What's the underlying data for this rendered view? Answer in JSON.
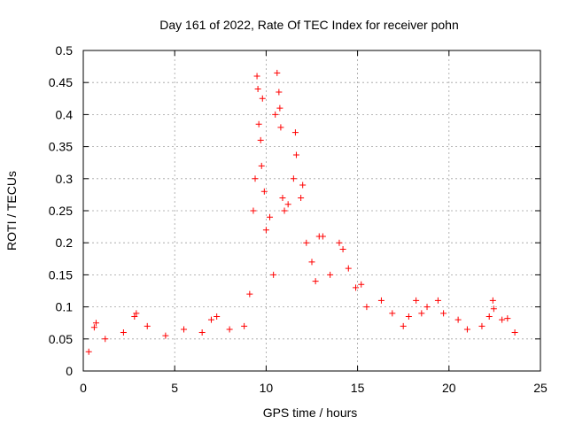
{
  "chart_data": {
    "type": "scatter",
    "title": "Day 161 of 2022, Rate Of TEC Index for receiver pohn",
    "xlabel": "GPS time / hours",
    "ylabel": "ROTI / TECUs",
    "xlim": [
      0,
      25
    ],
    "ylim": [
      0,
      0.5
    ],
    "xticks": [
      0,
      5,
      10,
      15,
      20,
      25
    ],
    "xtick_labels": [
      "0",
      "5",
      "10",
      "15",
      "20",
      "25"
    ],
    "yticks": [
      0,
      0.05,
      0.1,
      0.15,
      0.2,
      0.25,
      0.3,
      0.35,
      0.4,
      0.45,
      0.5
    ],
    "ytick_labels": [
      "0",
      "0.05",
      "0.1",
      "0.15",
      "0.2",
      "0.25",
      "0.3",
      "0.35",
      "0.4",
      "0.45",
      "0.5"
    ],
    "grid": true,
    "marker": "+",
    "color": "#ff0000",
    "data_x_range_hours": [
      0,
      24
    ],
    "series": [
      {
        "name": "ROTI",
        "points": [
          [
            0.3,
            0.03
          ],
          [
            0.6,
            0.068
          ],
          [
            0.7,
            0.075
          ],
          [
            1.2,
            0.05
          ],
          [
            2.2,
            0.06
          ],
          [
            2.8,
            0.085
          ],
          [
            2.9,
            0.09
          ],
          [
            3.5,
            0.07
          ],
          [
            4.5,
            0.055
          ],
          [
            5.5,
            0.065
          ],
          [
            6.5,
            0.06
          ],
          [
            7.0,
            0.08
          ],
          [
            7.3,
            0.085
          ],
          [
            8.0,
            0.065
          ],
          [
            8.8,
            0.07
          ],
          [
            9.1,
            0.12
          ],
          [
            9.3,
            0.25
          ],
          [
            9.4,
            0.3
          ],
          [
            9.5,
            0.46
          ],
          [
            9.55,
            0.44
          ],
          [
            9.6,
            0.385
          ],
          [
            9.7,
            0.36
          ],
          [
            9.75,
            0.32
          ],
          [
            9.8,
            0.425
          ],
          [
            9.9,
            0.28
          ],
          [
            10.0,
            0.22
          ],
          [
            10.2,
            0.24
          ],
          [
            10.4,
            0.15
          ],
          [
            10.5,
            0.4
          ],
          [
            10.6,
            0.465
          ],
          [
            10.7,
            0.435
          ],
          [
            10.75,
            0.41
          ],
          [
            10.8,
            0.38
          ],
          [
            10.9,
            0.27
          ],
          [
            11.0,
            0.25
          ],
          [
            11.2,
            0.26
          ],
          [
            11.5,
            0.3
          ],
          [
            11.6,
            0.372
          ],
          [
            11.65,
            0.337
          ],
          [
            11.9,
            0.27
          ],
          [
            12.0,
            0.29
          ],
          [
            12.2,
            0.2
          ],
          [
            12.5,
            0.17
          ],
          [
            12.7,
            0.14
          ],
          [
            12.9,
            0.21
          ],
          [
            13.1,
            0.21
          ],
          [
            13.5,
            0.15
          ],
          [
            14.0,
            0.2
          ],
          [
            14.2,
            0.19
          ],
          [
            14.5,
            0.16
          ],
          [
            14.9,
            0.13
          ],
          [
            15.2,
            0.135
          ],
          [
            15.5,
            0.1
          ],
          [
            16.3,
            0.11
          ],
          [
            16.9,
            0.09
          ],
          [
            17.5,
            0.07
          ],
          [
            17.8,
            0.085
          ],
          [
            18.2,
            0.11
          ],
          [
            18.5,
            0.09
          ],
          [
            18.8,
            0.1
          ],
          [
            19.4,
            0.11
          ],
          [
            19.7,
            0.09
          ],
          [
            20.5,
            0.08
          ],
          [
            21.0,
            0.065
          ],
          [
            21.8,
            0.07
          ],
          [
            22.2,
            0.085
          ],
          [
            22.4,
            0.11
          ],
          [
            22.45,
            0.097
          ],
          [
            22.9,
            0.08
          ],
          [
            23.2,
            0.082
          ],
          [
            23.6,
            0.06
          ]
        ]
      }
    ]
  }
}
